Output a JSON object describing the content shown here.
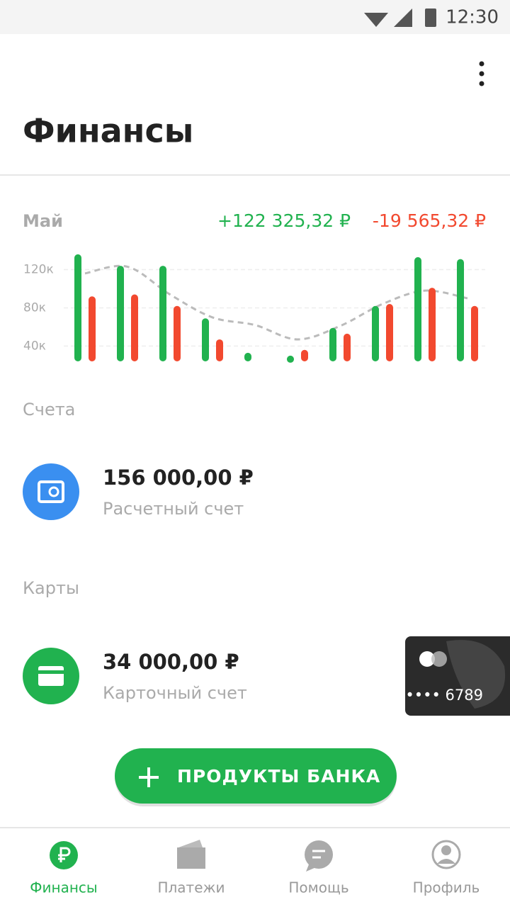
{
  "status_bar": {
    "time": "12:30"
  },
  "header": {
    "title": "Финансы"
  },
  "chart_data": {
    "type": "bar",
    "title": "Май",
    "income": "+122 325,32 ₽",
    "expense": "-19 565,32 ₽",
    "categories": [
      null,
      null,
      null,
      null,
      null,
      null,
      null,
      null,
      null,
      null
    ],
    "series": [
      {
        "color": "#21b24f",
        "values": [
          136000,
          124000,
          124000,
          69000,
          33000,
          30000,
          59000,
          82000,
          133000,
          131000
        ]
      },
      {
        "color": "#f2492f",
        "values": [
          92000,
          94000,
          82000,
          47000,
          null,
          36000,
          53000,
          84000,
          101000,
          82000
        ]
      }
    ],
    "trend": {
      "color": "#bbbbbb",
      "values": [
        116000,
        123000,
        94000,
        70000,
        62000,
        47000,
        61000,
        84000,
        98000,
        90000
      ]
    },
    "ylim": [
      24000,
      150000
    ],
    "yticks": [
      {
        "value": 40000,
        "label": "40к"
      },
      {
        "value": 80000,
        "label": "80к"
      },
      {
        "value": 120000,
        "label": "120к"
      }
    ],
    "grid": true
  },
  "accounts": {
    "title": "Счета",
    "items": [
      {
        "amount": "156 000,00 ₽",
        "label": "Расчетный счет"
      }
    ]
  },
  "cards": {
    "title": "Карты",
    "items": [
      {
        "amount": "34 000,00 ₽",
        "label": "Карточный счет",
        "card_number": "•••• 6789"
      }
    ]
  },
  "fab": {
    "label": "ПРОДУКТЫ БАНКА"
  },
  "nav": [
    {
      "label": "Финансы"
    },
    {
      "label": "Платежи"
    },
    {
      "label": "Помощь"
    },
    {
      "label": "Профиль"
    }
  ]
}
